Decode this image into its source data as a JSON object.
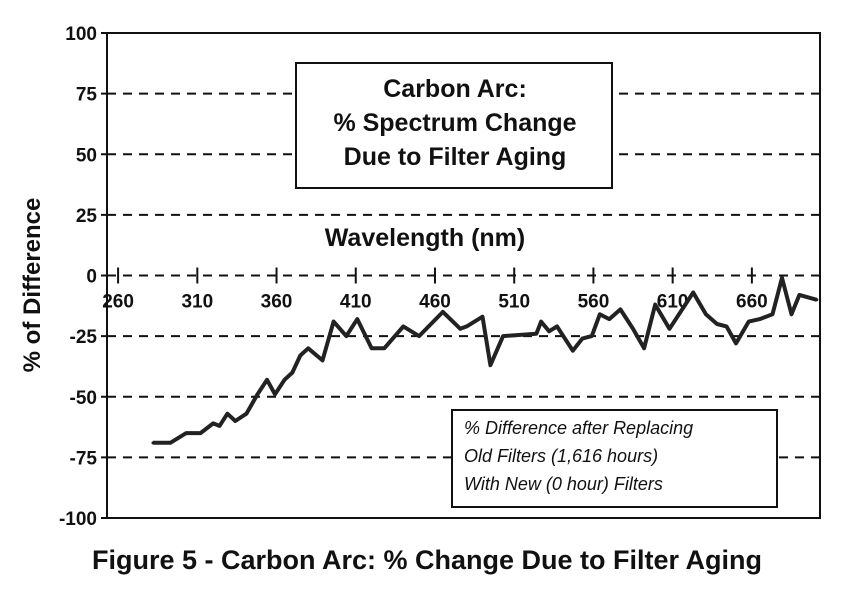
{
  "chart_data": {
    "type": "line",
    "title": "Carbon Arc:\n% Spectrum Change\nDue to Filter Aging",
    "title_lines": [
      "Carbon Arc:",
      "% Spectrum Change",
      "Due to Filter Aging"
    ],
    "xlabel": "Wavelength (nm)",
    "ylabel": "% of Difference",
    "caption": "Figure 5 - Carbon Arc: % Change Due to Filter Aging",
    "annotation_lines": [
      "% Difference after Replacing",
      "Old Filters (1,616 hours)",
      "With New (0 hour) Filters"
    ],
    "xlim": [
      253,
      703
    ],
    "ylim": [
      -100,
      100
    ],
    "xticks": [
      260,
      310,
      360,
      410,
      460,
      510,
      560,
      610,
      660
    ],
    "yticks": [
      100,
      75,
      50,
      25,
      0,
      -25,
      -50,
      -75,
      -100
    ],
    "grid": "horizontal dashed",
    "color": "#222222",
    "x": [
      282,
      293,
      303,
      312,
      320,
      324,
      329,
      334,
      341,
      348,
      354,
      359,
      365,
      370,
      375,
      380,
      389,
      396,
      404,
      411,
      420,
      428,
      440,
      450,
      465,
      476,
      480,
      490,
      495,
      503,
      524,
      527,
      532,
      537,
      547,
      553,
      559,
      564,
      570,
      577,
      583,
      585,
      592,
      599,
      608,
      623,
      631,
      638,
      644,
      650,
      658,
      665,
      673,
      679,
      685,
      690,
      701
    ],
    "y": [
      -69,
      -69,
      -65,
      -65,
      -61,
      -62,
      -57,
      -60,
      -57,
      -49,
      -43,
      -49,
      -43,
      -40,
      -33,
      -30,
      -35,
      -19,
      -25,
      -18,
      -30,
      -30,
      -21,
      -25,
      -15,
      -22,
      -21,
      -17,
      -37,
      -25,
      -24,
      -19,
      -23,
      -21,
      -31,
      -26,
      -25,
      -16,
      -18,
      -14,
      -20,
      -22,
      -30,
      -12,
      -22,
      -7,
      -16,
      -20,
      -21,
      -28,
      -19,
      -18,
      -16,
      -1,
      -16,
      -8,
      -10
    ]
  }
}
